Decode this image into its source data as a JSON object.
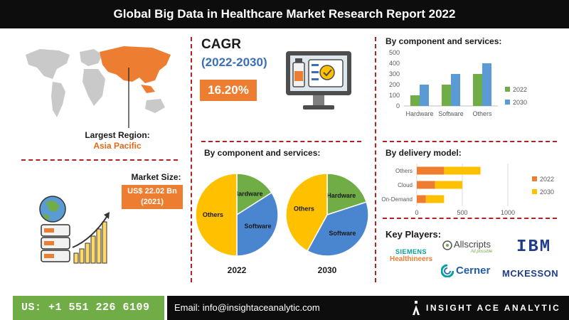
{
  "header": {
    "title": "Global Big Data in Healthcare Market Research Report 2022"
  },
  "cagr": {
    "label": "CAGR",
    "years": "(2022-2030)",
    "value": "16.20%"
  },
  "region": {
    "label": "Largest Region:",
    "value": "Asia Pacific"
  },
  "market_size": {
    "label": "Market Size:",
    "value_line1": "US$ 22.02 Bn",
    "value_line2": "(2021)"
  },
  "pie_section": {
    "title": "By component and services:"
  },
  "bar_section": {
    "title": "By component and services:"
  },
  "hbar_section": {
    "title": "By delivery model:"
  },
  "key_players": {
    "title": "Key Players:",
    "logos": [
      {
        "name": "siemens",
        "line1": "SIEMENS",
        "line2": "Healthineers"
      },
      {
        "name": "allscripts",
        "line1": "Allscripts",
        "line2": "All possible"
      },
      {
        "name": "ibm",
        "line1": "IBM"
      },
      {
        "name": "cerner",
        "line1": "Cerner"
      },
      {
        "name": "mckesson",
        "line1": "MCKESSON"
      }
    ]
  },
  "footer": {
    "phone": "US: +1 551 226 6109",
    "email": "Email: info@insightaceanalytic.com",
    "brand": "INSIGHT ACE ANALYTIC"
  },
  "colors": {
    "orange": "#ed7d31",
    "blue": "#5b9bd5",
    "green": "#70ad47",
    "gold": "#ffc000",
    "accent_blue": "#3a6fb5"
  },
  "chart_data": [
    {
      "type": "pie",
      "title": "2022",
      "slices": [
        {
          "label": "Hardware",
          "value": 16,
          "color": "#70ad47"
        },
        {
          "label": "Software",
          "value": 34,
          "color": "#4a86cf"
        },
        {
          "label": "Others",
          "value": 50,
          "color": "#ffc000"
        }
      ]
    },
    {
      "type": "pie",
      "title": "2030",
      "slices": [
        {
          "label": "Hardware",
          "value": 20,
          "color": "#70ad47"
        },
        {
          "label": "Software",
          "value": 38,
          "color": "#4a86cf"
        },
        {
          "label": "Others",
          "value": 42,
          "color": "#ffc000"
        }
      ]
    },
    {
      "type": "bar",
      "categories": [
        "Hardware",
        "Software",
        "Others"
      ],
      "series": [
        {
          "name": "2022",
          "values": [
            100,
            200,
            300
          ],
          "color": "#70ad47"
        },
        {
          "name": "2030",
          "values": [
            200,
            300,
            400
          ],
          "color": "#5b9bd5"
        }
      ],
      "ylim": [
        0,
        500
      ],
      "yticks": [
        "0",
        "100",
        "200",
        "300",
        "400",
        "500"
      ],
      "legend": "right",
      "grid": false
    },
    {
      "type": "bar",
      "orientation": "horizontal",
      "categories": [
        "Others",
        "Cloud",
        "On-Demand"
      ],
      "series": [
        {
          "name": "2022",
          "values": [
            300,
            200,
            100
          ],
          "color": "#ed7d31"
        },
        {
          "name": "2030",
          "values": [
            400,
            300,
            200
          ],
          "color": "#ffc000"
        }
      ],
      "stacked": true,
      "xlim": [
        0,
        1000
      ],
      "xticks": [
        "0",
        "500",
        "1000"
      ],
      "legend": "right",
      "grid": true
    }
  ]
}
